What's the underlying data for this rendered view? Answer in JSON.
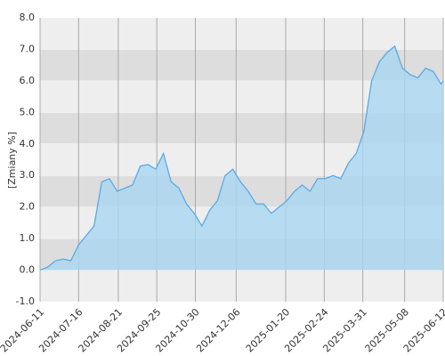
{
  "chart_data": {
    "type": "area",
    "y_label": "[Zmiany %]",
    "x": [
      "2024-06-11",
      "2024-06-18",
      "2024-06-25",
      "2024-07-02",
      "2024-07-09",
      "2024-07-16",
      "2024-07-23",
      "2024-07-30",
      "2024-08-06",
      "2024-08-13",
      "2024-08-20",
      "2024-08-27",
      "2024-09-03",
      "2024-09-10",
      "2024-09-17",
      "2024-09-24",
      "2024-10-01",
      "2024-10-08",
      "2024-10-15",
      "2024-10-22",
      "2024-10-29",
      "2024-11-05",
      "2024-11-12",
      "2024-11-19",
      "2024-11-26",
      "2024-12-03",
      "2024-12-10",
      "2024-12-17",
      "2024-12-24",
      "2024-12-31",
      "2025-01-07",
      "2025-01-14",
      "2025-01-21",
      "2025-01-28",
      "2025-02-04",
      "2025-02-11",
      "2025-02-18",
      "2025-02-25",
      "2025-03-04",
      "2025-03-11",
      "2025-03-18",
      "2025-03-25",
      "2025-04-01",
      "2025-04-08",
      "2025-04-15",
      "2025-04-22",
      "2025-04-29",
      "2025-05-06",
      "2025-05-13",
      "2025-05-20",
      "2025-05-27",
      "2025-06-03",
      "2025-06-10",
      "2025-06-12"
    ],
    "values": [
      0.0,
      0.1,
      0.3,
      0.35,
      0.3,
      0.8,
      1.1,
      1.4,
      2.8,
      2.9,
      2.5,
      2.6,
      2.7,
      3.3,
      3.35,
      3.2,
      3.7,
      2.8,
      2.6,
      2.1,
      1.8,
      1.4,
      1.9,
      2.2,
      3.0,
      3.2,
      2.8,
      2.5,
      2.1,
      2.1,
      1.8,
      2.0,
      2.2,
      2.5,
      2.7,
      2.5,
      2.9,
      2.9,
      3.0,
      2.9,
      3.4,
      3.7,
      4.4,
      6.0,
      6.6,
      6.9,
      7.1,
      6.4,
      6.2,
      6.1,
      6.4,
      6.3,
      5.9,
      6.0
    ],
    "color": "#5aaae8",
    "fill": "#a9d6f0",
    "xlim": [
      "2024-06-11",
      "2025-06-12"
    ],
    "xticks": [
      "2024-06-11",
      "2024-07-16",
      "2024-08-21",
      "2024-09-25",
      "2024-10-30",
      "2024-12-06",
      "2025-01-20",
      "2025-02-24",
      "2025-03-31",
      "2025-05-08",
      "2025-06-12"
    ],
    "ylim": [
      -1,
      8
    ],
    "yticks": [
      {
        "value": -1,
        "label": "-1.0"
      },
      {
        "value": 0,
        "label": "0.0"
      },
      {
        "value": 1,
        "label": "1.0"
      },
      {
        "value": 2,
        "label": "2.0"
      },
      {
        "value": 3,
        "label": "3.0"
      },
      {
        "value": 4,
        "label": "4.0"
      },
      {
        "value": 5,
        "label": "5.0"
      },
      {
        "value": 6,
        "label": "6.0"
      },
      {
        "value": 7,
        "label": "7.0"
      },
      {
        "value": 8,
        "label": "8.0"
      }
    ],
    "grid": true
  }
}
